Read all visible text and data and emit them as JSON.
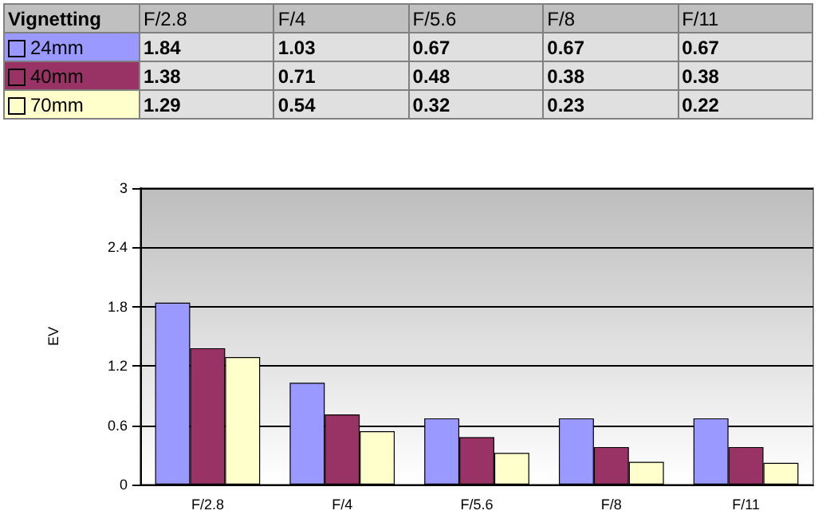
{
  "chart_data": {
    "type": "bar",
    "legend_title": "Vignetting",
    "ylabel": "EV",
    "categories": [
      "F/2.8",
      "F/4",
      "F/5.6",
      "F/8",
      "F/11"
    ],
    "series": [
      {
        "name": "24mm",
        "color": "#9999ff",
        "values": [
          1.84,
          1.03,
          0.67,
          0.67,
          0.67
        ]
      },
      {
        "name": "40mm",
        "color": "#993366",
        "values": [
          1.38,
          0.71,
          0.48,
          0.38,
          0.38
        ]
      },
      {
        "name": "70mm",
        "color": "#ffffcc",
        "values": [
          1.29,
          0.54,
          0.32,
          0.23,
          0.22
        ]
      }
    ],
    "ylim": [
      0,
      3
    ],
    "yticks": [
      0,
      0.6,
      1.2,
      1.8,
      2.4,
      3
    ],
    "grid": "y",
    "legend": "top",
    "data_labels": true
  }
}
